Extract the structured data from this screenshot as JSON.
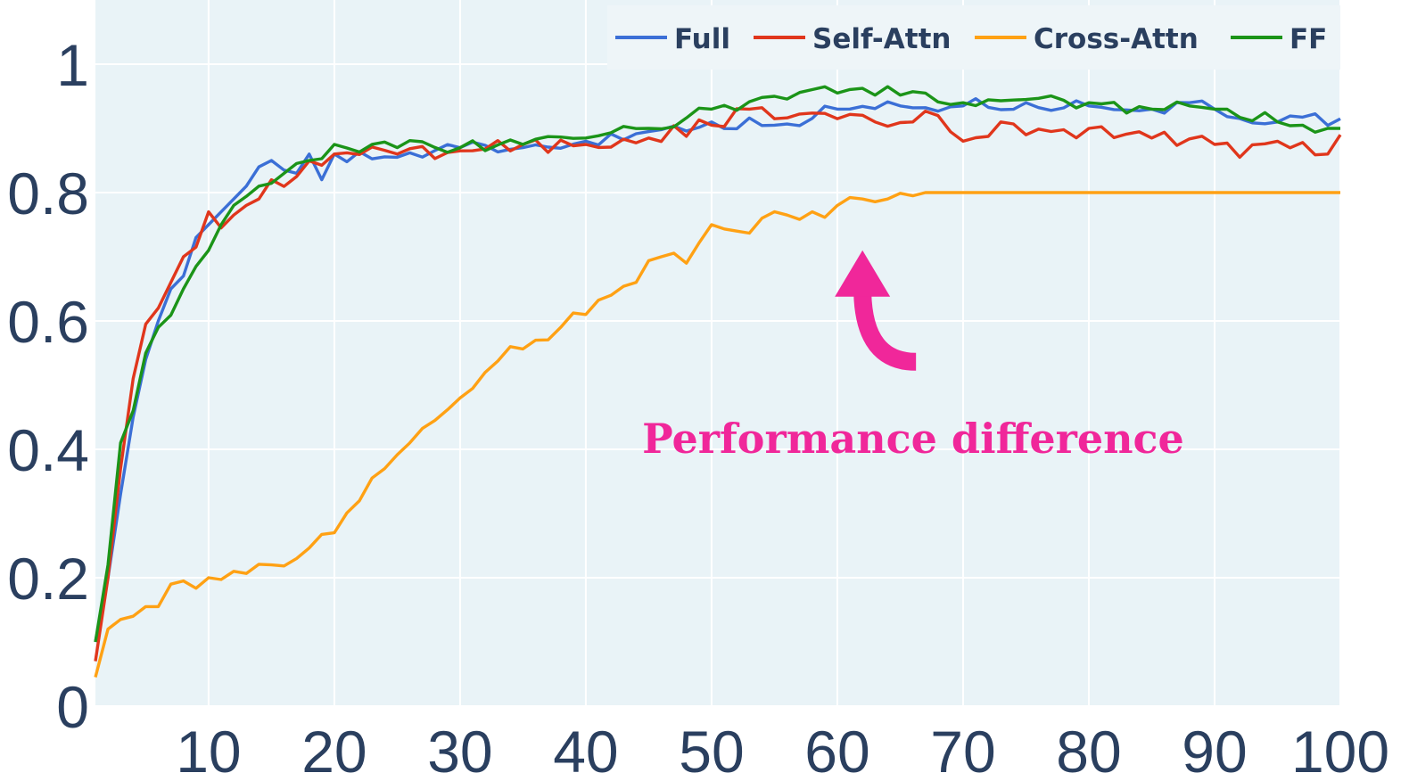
{
  "colors": {
    "plot_bg": "#e9f3f7",
    "grid": "#ffffff",
    "axis_text": "#2a3f5f",
    "annotation": "#f0279a"
  },
  "chart_data": {
    "type": "line",
    "title": "",
    "xlabel": "",
    "ylabel": "",
    "xlim": [
      1,
      100
    ],
    "ylim": [
      0,
      1.1
    ],
    "grid": true,
    "legend_position": "top-right",
    "x_ticks": [
      10,
      20,
      30,
      40,
      50,
      60,
      70,
      80,
      90,
      100
    ],
    "x_tick_labels": [
      "10",
      "20",
      "30",
      "40",
      "50",
      "60",
      "70",
      "80",
      "90",
      "100"
    ],
    "y_ticks": [
      0,
      0.2,
      0.4,
      0.6,
      0.8,
      1
    ],
    "y_tick_labels": [
      "0",
      "0.2",
      "0.4",
      "0.6",
      "0.8",
      "1"
    ],
    "series": [
      {
        "name": "Full",
        "color": "#3b6fd6",
        "anchors": [
          [
            1,
            0.1
          ],
          [
            2,
            0.2
          ],
          [
            3,
            0.33
          ],
          [
            4,
            0.45
          ],
          [
            5,
            0.54
          ],
          [
            6,
            0.6
          ],
          [
            7,
            0.65
          ],
          [
            8,
            0.67
          ],
          [
            9,
            0.73
          ],
          [
            10,
            0.75
          ],
          [
            11,
            0.77
          ],
          [
            12,
            0.79
          ],
          [
            13,
            0.81
          ],
          [
            14,
            0.84
          ],
          [
            15,
            0.85
          ],
          [
            16,
            0.835
          ],
          [
            17,
            0.83
          ],
          [
            18,
            0.86
          ],
          [
            19,
            0.82
          ],
          [
            20,
            0.86
          ],
          [
            25,
            0.855
          ],
          [
            30,
            0.87
          ],
          [
            35,
            0.87
          ],
          [
            40,
            0.88
          ],
          [
            45,
            0.895
          ],
          [
            50,
            0.91
          ],
          [
            55,
            0.905
          ],
          [
            60,
            0.93
          ],
          [
            65,
            0.935
          ],
          [
            70,
            0.935
          ],
          [
            75,
            0.94
          ],
          [
            80,
            0.935
          ],
          [
            85,
            0.93
          ],
          [
            88,
            0.94
          ],
          [
            90,
            0.93
          ],
          [
            95,
            0.91
          ],
          [
            100,
            0.915
          ]
        ],
        "noise": 0.011
      },
      {
        "name": "Self-Attn",
        "color": "#e0361c",
        "anchors": [
          [
            1,
            0.07
          ],
          [
            2,
            0.2
          ],
          [
            3,
            0.37
          ],
          [
            4,
            0.51
          ],
          [
            5,
            0.595
          ],
          [
            6,
            0.62
          ],
          [
            7,
            0.66
          ],
          [
            8,
            0.7
          ],
          [
            9,
            0.715
          ],
          [
            10,
            0.77
          ],
          [
            11,
            0.745
          ],
          [
            12,
            0.765
          ],
          [
            13,
            0.78
          ],
          [
            14,
            0.79
          ],
          [
            15,
            0.82
          ],
          [
            17,
            0.825
          ],
          [
            20,
            0.86
          ],
          [
            25,
            0.86
          ],
          [
            30,
            0.865
          ],
          [
            35,
            0.875
          ],
          [
            40,
            0.875
          ],
          [
            45,
            0.885
          ],
          [
            50,
            0.905
          ],
          [
            53,
            0.93
          ],
          [
            55,
            0.915
          ],
          [
            60,
            0.915
          ],
          [
            63,
            0.91
          ],
          [
            66,
            0.91
          ],
          [
            68,
            0.92
          ],
          [
            70,
            0.88
          ],
          [
            73,
            0.91
          ],
          [
            75,
            0.89
          ],
          [
            80,
            0.9
          ],
          [
            85,
            0.885
          ],
          [
            90,
            0.875
          ],
          [
            92,
            0.855
          ],
          [
            95,
            0.88
          ],
          [
            99,
            0.86
          ],
          [
            100,
            0.89
          ]
        ],
        "noise": 0.013
      },
      {
        "name": "Cross-Attn",
        "color": "#ffa114",
        "anchors": [
          [
            1,
            0.045
          ],
          [
            2,
            0.12
          ],
          [
            3,
            0.135
          ],
          [
            4,
            0.14
          ],
          [
            5,
            0.155
          ],
          [
            6,
            0.155
          ],
          [
            7,
            0.19
          ],
          [
            8,
            0.195
          ],
          [
            10,
            0.2
          ],
          [
            12,
            0.21
          ],
          [
            15,
            0.22
          ],
          [
            17,
            0.23
          ],
          [
            20,
            0.27
          ],
          [
            22,
            0.32
          ],
          [
            24,
            0.37
          ],
          [
            26,
            0.41
          ],
          [
            28,
            0.445
          ],
          [
            30,
            0.48
          ],
          [
            32,
            0.52
          ],
          [
            34,
            0.56
          ],
          [
            36,
            0.57
          ],
          [
            38,
            0.59
          ],
          [
            40,
            0.61
          ],
          [
            42,
            0.64
          ],
          [
            44,
            0.66
          ],
          [
            46,
            0.7
          ],
          [
            48,
            0.69
          ],
          [
            50,
            0.75
          ],
          [
            52,
            0.74
          ],
          [
            54,
            0.76
          ],
          [
            56,
            0.765
          ],
          [
            58,
            0.77
          ],
          [
            60,
            0.78
          ],
          [
            62,
            0.79
          ],
          [
            64,
            0.79
          ],
          [
            66,
            0.795
          ],
          [
            67,
            0.8
          ],
          [
            100,
            0.8
          ]
        ],
        "noise": 0.014,
        "noise_until": 66
      },
      {
        "name": "FF",
        "color": "#1b9418",
        "anchors": [
          [
            1,
            0.1
          ],
          [
            2,
            0.22
          ],
          [
            3,
            0.41
          ],
          [
            4,
            0.46
          ],
          [
            5,
            0.55
          ],
          [
            6,
            0.59
          ],
          [
            8,
            0.65
          ],
          [
            9,
            0.685
          ],
          [
            10,
            0.71
          ],
          [
            11,
            0.75
          ],
          [
            12,
            0.78
          ],
          [
            14,
            0.81
          ],
          [
            16,
            0.83
          ],
          [
            18,
            0.85
          ],
          [
            20,
            0.875
          ],
          [
            25,
            0.87
          ],
          [
            30,
            0.87
          ],
          [
            35,
            0.875
          ],
          [
            40,
            0.885
          ],
          [
            45,
            0.9
          ],
          [
            50,
            0.93
          ],
          [
            55,
            0.95
          ],
          [
            60,
            0.955
          ],
          [
            64,
            0.965
          ],
          [
            67,
            0.955
          ],
          [
            70,
            0.94
          ],
          [
            75,
            0.945
          ],
          [
            80,
            0.94
          ],
          [
            85,
            0.93
          ],
          [
            88,
            0.935
          ],
          [
            90,
            0.93
          ],
          [
            95,
            0.91
          ],
          [
            100,
            0.9
          ]
        ],
        "noise": 0.011
      }
    ],
    "annotation": {
      "text": "Performance difference",
      "color": "#f0279a",
      "points_to": {
        "x": 62,
        "y": 0.71
      }
    }
  }
}
